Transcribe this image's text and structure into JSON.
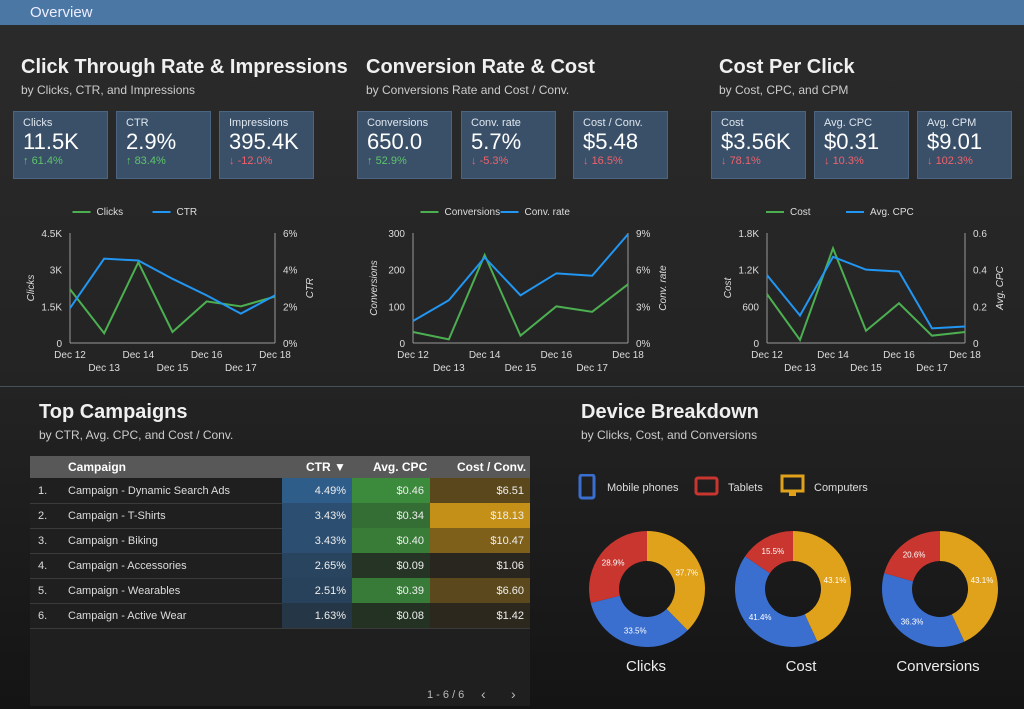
{
  "header": {
    "title": "Overview"
  },
  "sections": [
    {
      "title": "Click Through Rate & Impressions",
      "subtitle": "by Clicks, CTR, and Impressions",
      "kpis": [
        {
          "label": "Clicks",
          "value": "11.5K",
          "change": "61.4%",
          "dir": "up"
        },
        {
          "label": "CTR",
          "value": "2.9%",
          "change": "83.4%",
          "dir": "up"
        },
        {
          "label": "Impressions",
          "value": "395.4K",
          "change": "-12.0%",
          "dir": "down"
        }
      ]
    },
    {
      "title": "Conversion Rate & Cost",
      "subtitle": "by Conversions Rate and Cost / Conv.",
      "kpis": [
        {
          "label": "Conversions",
          "value": "650.0",
          "change": "52.9%",
          "dir": "up"
        },
        {
          "label": "Conv. rate",
          "value": "5.7%",
          "change": "-5.3%",
          "dir": "down"
        },
        {
          "label": "Cost / Conv.",
          "value": "$5.48",
          "change": "16.5%",
          "dir": "down"
        }
      ]
    },
    {
      "title": "Cost Per Click",
      "subtitle": "by Cost, CPC, and CPM",
      "kpis": [
        {
          "label": "Cost",
          "value": "$3.56K",
          "change": "78.1%",
          "dir": "down"
        },
        {
          "label": "Avg. CPC",
          "value": "$0.31",
          "change": "10.3%",
          "dir": "down"
        },
        {
          "label": "Avg. CPM",
          "value": "$9.01",
          "change": "102.3%",
          "dir": "down"
        }
      ]
    }
  ],
  "colors": {
    "series1": "#4caf50",
    "series2": "#2196f3",
    "mobile": "#3a6fd0",
    "tablets": "#c8362f",
    "computers": "#e0a11b"
  },
  "chart_data": [
    {
      "type": "line",
      "x": [
        "Dec 12",
        "Dec 13",
        "Dec 14",
        "Dec 15",
        "Dec 16",
        "Dec 17",
        "Dec 18"
      ],
      "series": [
        {
          "name": "Clicks",
          "axis": "left",
          "values": [
            2200,
            400,
            3300,
            450,
            1700,
            1500,
            1900
          ]
        },
        {
          "name": "CTR",
          "axis": "right",
          "values": [
            1.9,
            4.6,
            4.5,
            3.5,
            2.6,
            1.6,
            2.6
          ]
        }
      ],
      "ylabel": "Clicks",
      "y2label": "CTR",
      "yticks": [
        "0",
        "1.5K",
        "3K",
        "4.5K"
      ],
      "y2ticks": [
        "0%",
        "2%",
        "4%",
        "6%"
      ],
      "ylim": [
        0,
        4500
      ],
      "y2lim": [
        0,
        6
      ],
      "legend": "top"
    },
    {
      "type": "line",
      "x": [
        "Dec 12",
        "Dec 13",
        "Dec 14",
        "Dec 15",
        "Dec 16",
        "Dec 17",
        "Dec 18"
      ],
      "series": [
        {
          "name": "Conversions",
          "axis": "left",
          "values": [
            30,
            10,
            240,
            20,
            100,
            85,
            160
          ]
        },
        {
          "name": "Conv. rate",
          "axis": "right",
          "values": [
            1.8,
            3.5,
            7.0,
            3.9,
            5.7,
            5.5,
            8.9
          ]
        }
      ],
      "ylabel": "Conversions",
      "y2label": "Conv. rate",
      "yticks": [
        "0",
        "100",
        "200",
        "300"
      ],
      "y2ticks": [
        "0%",
        "3%",
        "6%",
        "9%"
      ],
      "ylim": [
        0,
        300
      ],
      "y2lim": [
        0,
        9
      ],
      "legend": "top"
    },
    {
      "type": "line",
      "x": [
        "Dec 12",
        "Dec 13",
        "Dec 14",
        "Dec 15",
        "Dec 16",
        "Dec 17",
        "Dec 18"
      ],
      "series": [
        {
          "name": "Cost",
          "axis": "left",
          "values": [
            800,
            50,
            1550,
            200,
            650,
            120,
            180
          ]
        },
        {
          "name": "Avg. CPC",
          "axis": "right",
          "values": [
            0.37,
            0.15,
            0.47,
            0.4,
            0.39,
            0.08,
            0.09
          ]
        }
      ],
      "ylabel": "Cost",
      "y2label": "Avg. CPC",
      "yticks": [
        "0",
        "600",
        "1.2K",
        "1.8K"
      ],
      "y2ticks": [
        "0",
        "0.2",
        "0.4",
        "0.6"
      ],
      "ylim": [
        0,
        1800
      ],
      "y2lim": [
        0,
        0.6
      ],
      "legend": "top"
    },
    {
      "type": "pie",
      "title": "Clicks",
      "labels": [
        "Mobile phones",
        "Tablets",
        "Computers"
      ],
      "values": [
        33.5,
        28.9,
        37.7
      ],
      "pct_labels": [
        "33.5%",
        "28.9%",
        "37.7%"
      ]
    },
    {
      "type": "pie",
      "title": "Cost",
      "labels": [
        "Mobile phones",
        "Tablets",
        "Computers"
      ],
      "values": [
        41.4,
        15.5,
        43.1
      ],
      "pct_labels": [
        "41.4%",
        "15.5%",
        "43.1%"
      ]
    },
    {
      "type": "pie",
      "title": "Conversions",
      "labels": [
        "Mobile phones",
        "Tablets",
        "Computers"
      ],
      "values": [
        36.3,
        20.6,
        43.1
      ],
      "pct_labels": [
        "36.3%",
        "20.6%",
        "43.1%"
      ]
    }
  ],
  "campaigns": {
    "title": "Top Campaigns",
    "subtitle": "by CTR, Avg. CPC, and Cost / Conv.",
    "columns": {
      "campaign": "Campaign",
      "ctr": "CTR ▼",
      "cpc": "Avg. CPC",
      "cost": "Cost / Conv."
    },
    "rows": [
      {
        "n": "1.",
        "name": "Campaign - Dynamic Search Ads",
        "ctr": "4.49%",
        "cpc": "$0.46",
        "cost": "$6.51",
        "ctr_v": 4.49,
        "cpc_v": 0.46,
        "cost_v": 6.51
      },
      {
        "n": "2.",
        "name": "Campaign - T-Shirts",
        "ctr": "3.43%",
        "cpc": "$0.34",
        "cost": "$18.13",
        "ctr_v": 3.43,
        "cpc_v": 0.34,
        "cost_v": 18.13
      },
      {
        "n": "3.",
        "name": "Campaign - Biking",
        "ctr": "3.43%",
        "cpc": "$0.40",
        "cost": "$10.47",
        "ctr_v": 3.43,
        "cpc_v": 0.4,
        "cost_v": 10.47
      },
      {
        "n": "4.",
        "name": "Campaign - Accessories",
        "ctr": "2.65%",
        "cpc": "$0.09",
        "cost": "$1.06",
        "ctr_v": 2.65,
        "cpc_v": 0.09,
        "cost_v": 1.06
      },
      {
        "n": "5.",
        "name": "Campaign - Wearables",
        "ctr": "2.51%",
        "cpc": "$0.39",
        "cost": "$6.60",
        "ctr_v": 2.51,
        "cpc_v": 0.39,
        "cost_v": 6.6
      },
      {
        "n": "6.",
        "name": "Campaign - Active Wear",
        "ctr": "1.63%",
        "cpc": "$0.08",
        "cost": "$1.42",
        "ctr_v": 1.63,
        "cpc_v": 0.08,
        "cost_v": 1.42
      }
    ],
    "pager": "1 - 6 / 6"
  },
  "devices": {
    "title": "Device Breakdown",
    "subtitle": "by Clicks, Cost, and Conversions",
    "legend": [
      "Mobile phones",
      "Tablets",
      "Computers"
    ]
  }
}
